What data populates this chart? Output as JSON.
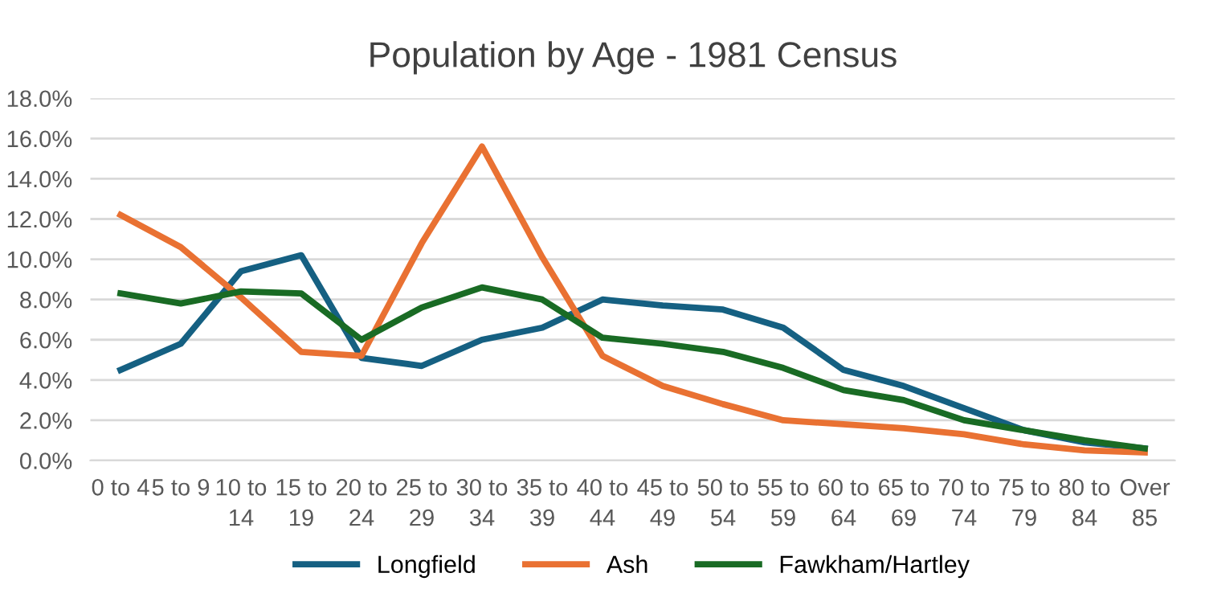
{
  "chart_data": {
    "type": "line",
    "title": "Population by Age - 1981 Census",
    "categories": [
      "0 to 4",
      "5 to 9",
      "10 to 14",
      "15 to 19",
      "20 to 24",
      "25 to 29",
      "30 to 34",
      "35 to 39",
      "40 to 44",
      "45 to 49",
      "50 to 54",
      "55 to 59",
      "60 to 64",
      "65 to 69",
      "70 to 74",
      "75 to 79",
      "80 to 84",
      "Over 85"
    ],
    "series": [
      {
        "name": "Longfield",
        "color": "#156082",
        "values": [
          4.5,
          5.8,
          9.4,
          10.2,
          5.1,
          4.7,
          6.0,
          6.6,
          8.0,
          7.7,
          7.5,
          6.6,
          4.5,
          3.7,
          2.6,
          1.5,
          0.9,
          0.6
        ]
      },
      {
        "name": "Ash",
        "color": "#e97132",
        "values": [
          12.2,
          10.6,
          8.1,
          5.4,
          5.2,
          10.8,
          15.6,
          10.1,
          5.2,
          3.7,
          2.8,
          2.0,
          1.8,
          1.6,
          1.3,
          0.8,
          0.5,
          0.4
        ]
      },
      {
        "name": "Fawkham/Hartley",
        "color": "#196b24",
        "values": [
          8.3,
          7.8,
          8.4,
          8.3,
          6.0,
          7.6,
          8.6,
          8.0,
          6.1,
          5.8,
          5.4,
          4.6,
          3.5,
          3.0,
          2.0,
          1.5,
          1.0,
          0.6
        ]
      }
    ],
    "ylim": [
      0,
      18
    ],
    "yticks": [
      {
        "value": 0,
        "label": "0.0%"
      },
      {
        "value": 2,
        "label": "2.0%"
      },
      {
        "value": 4,
        "label": "4.0%"
      },
      {
        "value": 6,
        "label": "6.0%"
      },
      {
        "value": 8,
        "label": "8.0%"
      },
      {
        "value": 10,
        "label": "10.0%"
      },
      {
        "value": 12,
        "label": "12.0%"
      },
      {
        "value": 14,
        "label": "14.0%"
      },
      {
        "value": 16,
        "label": "16.0%"
      },
      {
        "value": 18,
        "label": "18.0%"
      }
    ],
    "grid": "y",
    "legend": "bottom",
    "marker": "none",
    "line_style": "solid"
  }
}
